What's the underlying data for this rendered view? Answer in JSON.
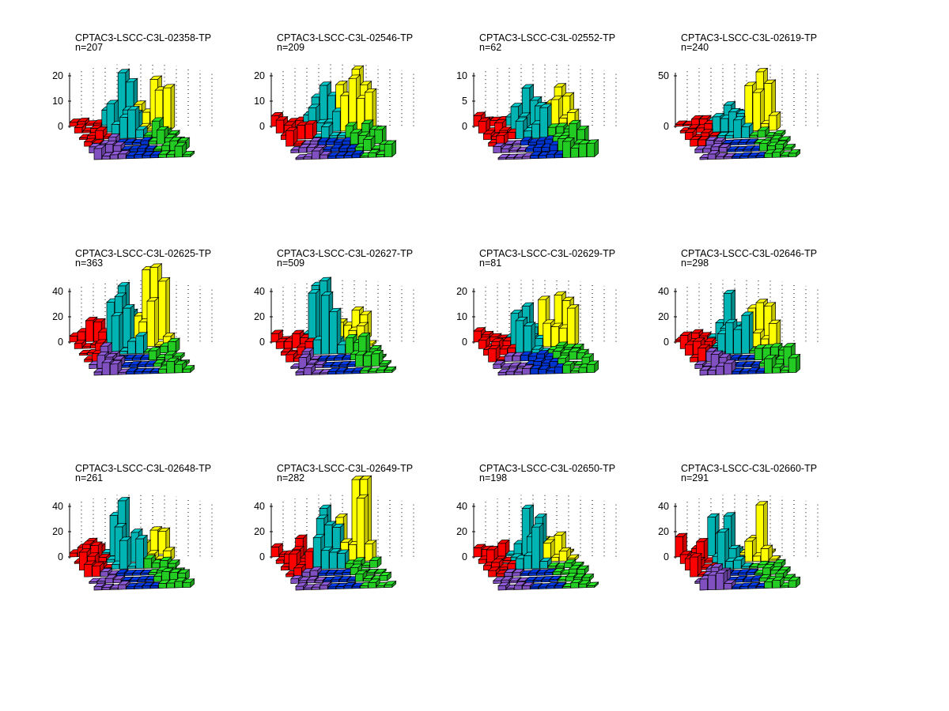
{
  "figure": {
    "background": "#ffffff",
    "colors": {
      "red": "#ff0000",
      "cyan": "#00b4b4",
      "yellow": "#ffff00",
      "green": "#22cc22",
      "blue": "#0033cc",
      "purple": "#8050c0"
    }
  },
  "chart_data": [
    {
      "type": "bar3d",
      "title": "CPTAC3-LSCC-C3L-02358-TP",
      "subtitle": "n=207",
      "zticks": [
        0,
        10,
        20
      ],
      "zmax": 20,
      "peaks": {
        "red": 3,
        "cyan": 20,
        "yellow": 17,
        "green": 6,
        "blue": 1,
        "purple": 4
      }
    },
    {
      "type": "bar3d",
      "title": "CPTAC3-LSCC-C3L-02546-TP",
      "subtitle": "n=209",
      "zticks": [
        0,
        10,
        20
      ],
      "zmax": 20,
      "peaks": {
        "red": 6,
        "cyan": 15,
        "yellow": 21,
        "green": 5,
        "blue": 1,
        "purple": 4
      }
    },
    {
      "type": "bar3d",
      "title": "CPTAC3-LSCC-C3L-02552-TP",
      "subtitle": "n=62",
      "zticks": [
        0,
        5,
        10
      ],
      "zmax": 10,
      "peaks": {
        "red": 2,
        "cyan": 7,
        "yellow": 7,
        "green": 4,
        "blue": 1,
        "purple": 1
      }
    },
    {
      "type": "bar3d",
      "title": "CPTAC3-LSCC-C3L-02619-TP",
      "subtitle": "n=240",
      "zticks": [
        0,
        50
      ],
      "zmax": 50,
      "peaks": {
        "red": 8,
        "cyan": 18,
        "yellow": 50,
        "green": 6,
        "blue": 1,
        "purple": 4
      }
    },
    {
      "type": "bar3d",
      "title": "CPTAC3-LSCC-C3L-02625-TP",
      "subtitle": "n=363",
      "zticks": [
        0,
        20,
        40
      ],
      "zmax": 40,
      "peaks": {
        "red": 16,
        "cyan": 42,
        "yellow": 56,
        "green": 10,
        "blue": 1,
        "purple": 12
      }
    },
    {
      "type": "bar3d",
      "title": "CPTAC3-LSCC-C3L-02627-TP",
      "subtitle": "n=509",
      "zticks": [
        0,
        20,
        40
      ],
      "zmax": 40,
      "peaks": {
        "red": 12,
        "cyan": 46,
        "yellow": 22,
        "green": 18,
        "blue": 1,
        "purple": 8
      }
    },
    {
      "type": "bar3d",
      "title": "CPTAC3-LSCC-C3L-02629-TP",
      "subtitle": "n=81",
      "zticks": [
        0,
        10,
        20
      ],
      "zmax": 20,
      "peaks": {
        "red": 5,
        "cyan": 13,
        "yellow": 17,
        "green": 3,
        "blue": 2,
        "purple": 2
      }
    },
    {
      "type": "bar3d",
      "title": "CPTAC3-LSCC-C3L-02646-TP",
      "subtitle": "n=298",
      "zticks": [
        0,
        20,
        40
      ],
      "zmax": 40,
      "peaks": {
        "red": 12,
        "cyan": 36,
        "yellow": 28,
        "green": 18,
        "blue": 1,
        "purple": 10
      }
    },
    {
      "type": "bar3d",
      "title": "CPTAC3-LSCC-C3L-02648-TP",
      "subtitle": "n=261",
      "zticks": [
        0,
        20,
        40
      ],
      "zmax": 40,
      "peaks": {
        "red": 14,
        "cyan": 42,
        "yellow": 18,
        "green": 8,
        "blue": 1,
        "purple": 4
      }
    },
    {
      "type": "bar3d",
      "title": "CPTAC3-LSCC-C3L-02649-TP",
      "subtitle": "n=282",
      "zticks": [
        0,
        20,
        40
      ],
      "zmax": 40,
      "peaks": {
        "red": 20,
        "cyan": 36,
        "yellow": 62,
        "green": 6,
        "blue": 1,
        "purple": 4
      }
    },
    {
      "type": "bar3d",
      "title": "CPTAC3-LSCC-C3L-02650-TP",
      "subtitle": "n=198",
      "zticks": [
        0,
        20,
        40
      ],
      "zmax": 40,
      "peaks": {
        "red": 10,
        "cyan": 36,
        "yellow": 14,
        "green": 4,
        "blue": 1,
        "purple": 4
      }
    },
    {
      "type": "bar3d",
      "title": "CPTAC3-LSCC-C3L-02660-TP",
      "subtitle": "n=291",
      "zticks": [
        0,
        20,
        40
      ],
      "zmax": 40,
      "peaks": {
        "red": 16,
        "cyan": 30,
        "yellow": 38,
        "green": 5,
        "blue": 1,
        "purple": 12
      }
    }
  ],
  "panels": [
    {
      "title": "CPTAC3-LSCC-C3L-02358-TP",
      "n": "n=207"
    },
    {
      "title": "CPTAC3-LSCC-C3L-02546-TP",
      "n": "n=209"
    },
    {
      "title": "CPTAC3-LSCC-C3L-02552-TP",
      "n": "n=62"
    },
    {
      "title": "CPTAC3-LSCC-C3L-02619-TP",
      "n": "n=240"
    },
    {
      "title": "CPTAC3-LSCC-C3L-02625-TP",
      "n": "n=363"
    },
    {
      "title": "CPTAC3-LSCC-C3L-02627-TP",
      "n": "n=509"
    },
    {
      "title": "CPTAC3-LSCC-C3L-02629-TP",
      "n": "n=81"
    },
    {
      "title": "CPTAC3-LSCC-C3L-02646-TP",
      "n": "n=298"
    },
    {
      "title": "CPTAC3-LSCC-C3L-02648-TP",
      "n": "n=261"
    },
    {
      "title": "CPTAC3-LSCC-C3L-02649-TP",
      "n": "n=282"
    },
    {
      "title": "CPTAC3-LSCC-C3L-02650-TP",
      "n": "n=198"
    },
    {
      "title": "CPTAC3-LSCC-C3L-02660-TP",
      "n": "n=291"
    }
  ]
}
